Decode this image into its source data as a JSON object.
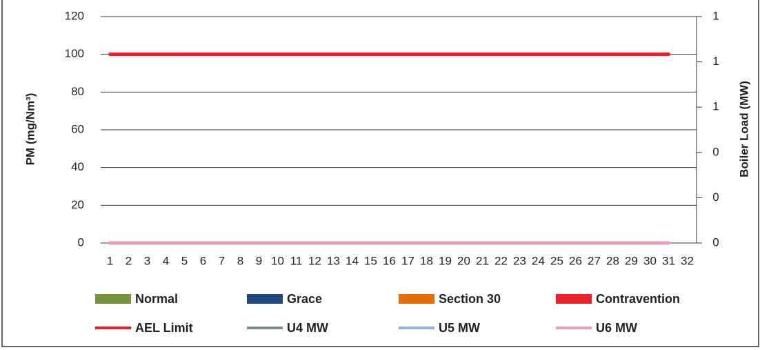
{
  "chart_data": {
    "type": "bar",
    "y_label": "PM (mg/Nm³)",
    "y2_label": "Boiler Load (MW)",
    "categories": [
      "1",
      "2",
      "3",
      "4",
      "5",
      "6",
      "7",
      "8",
      "9",
      "10",
      "11",
      "12",
      "13",
      "14",
      "15",
      "16",
      "17",
      "18",
      "19",
      "20",
      "21",
      "22",
      "23",
      "24",
      "25",
      "26",
      "27",
      "28",
      "29",
      "30",
      "31",
      "32"
    ],
    "ylim": [
      0,
      120
    ],
    "yticks": [
      0,
      20,
      40,
      60,
      80,
      100,
      120
    ],
    "y2lim": [
      0,
      1
    ],
    "y2ticks": [
      0,
      {
        "value": 0.2,
        "label": "0"
      },
      {
        "value": 0.4,
        "label": "0"
      },
      {
        "value": 0.6,
        "label": "1"
      },
      {
        "value": 0.8,
        "label": "1"
      },
      1
    ],
    "grid": true,
    "legend": "bottom",
    "series": [
      {
        "name": "Normal",
        "type": "bar",
        "color": "#77933c",
        "values": [
          0,
          0,
          0,
          0,
          0,
          0,
          0,
          0,
          0,
          0,
          0,
          0,
          0,
          0,
          0,
          0,
          0,
          0,
          0,
          0,
          0,
          0,
          0,
          0,
          0,
          0,
          0,
          0,
          0,
          0,
          0,
          null
        ]
      },
      {
        "name": "Grace",
        "type": "bar",
        "color": "#1f497d",
        "values": [
          0,
          0,
          0,
          0,
          0,
          0,
          0,
          0,
          0,
          0,
          0,
          0,
          0,
          0,
          0,
          0,
          0,
          0,
          0,
          0,
          0,
          0,
          0,
          0,
          0,
          0,
          0,
          0,
          0,
          0,
          0,
          null
        ]
      },
      {
        "name": "Section 30",
        "type": "bar",
        "color": "#e46c0a",
        "values": [
          0,
          0,
          0,
          0,
          0,
          0,
          0,
          0,
          0,
          0,
          0,
          0,
          0,
          0,
          0,
          0,
          0,
          0,
          0,
          0,
          0,
          0,
          0,
          0,
          0,
          0,
          0,
          0,
          0,
          0,
          0,
          null
        ]
      },
      {
        "name": "Contravention",
        "type": "bar",
        "color": "#e8202a",
        "values": [
          0,
          0,
          0,
          0,
          0,
          0,
          0,
          0,
          0,
          0,
          0,
          0,
          0,
          0,
          0,
          0,
          0,
          0,
          0,
          0,
          0,
          0,
          0,
          0,
          0,
          0,
          0,
          0,
          0,
          0,
          0,
          null
        ]
      },
      {
        "name": "AEL Limit",
        "type": "line",
        "color": "#e8202a",
        "values": [
          100,
          100,
          100,
          100,
          100,
          100,
          100,
          100,
          100,
          100,
          100,
          100,
          100,
          100,
          100,
          100,
          100,
          100,
          100,
          100,
          100,
          100,
          100,
          100,
          100,
          100,
          100,
          100,
          100,
          100,
          100,
          null
        ]
      },
      {
        "name": "U4 MW",
        "type": "line",
        "axis": "y2",
        "color": "#7f8c8d",
        "values": [
          0,
          0,
          0,
          0,
          0,
          0,
          0,
          0,
          0,
          0,
          0,
          0,
          0,
          0,
          0,
          0,
          0,
          0,
          0,
          0,
          0,
          0,
          0,
          0,
          0,
          0,
          0,
          0,
          0,
          0,
          0,
          null
        ]
      },
      {
        "name": "U5 MW",
        "type": "line",
        "axis": "y2",
        "color": "#8db4e2",
        "values": [
          0,
          0,
          0,
          0,
          0,
          0,
          0,
          0,
          0,
          0,
          0,
          0,
          0,
          0,
          0,
          0,
          0,
          0,
          0,
          0,
          0,
          0,
          0,
          0,
          0,
          0,
          0,
          0,
          0,
          0,
          0,
          null
        ]
      },
      {
        "name": "U6 MW",
        "type": "line",
        "axis": "y2",
        "color": "#e6a0b4",
        "values": [
          0,
          0,
          0,
          0,
          0,
          0,
          0,
          0,
          0,
          0,
          0,
          0,
          0,
          0,
          0,
          0,
          0,
          0,
          0,
          0,
          0,
          0,
          0,
          0,
          0,
          0,
          0,
          0,
          0,
          0,
          0,
          null
        ]
      }
    ]
  }
}
